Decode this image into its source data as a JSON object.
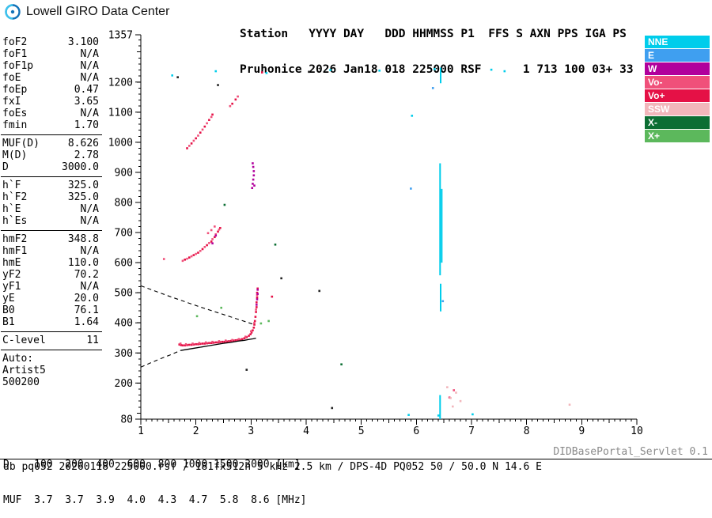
{
  "header": {
    "brand": "Lowell GIRO Data Center",
    "station_line1": "Station   YYYY DAY   DDD HHMMSS P1  FFS S AXN PPS IGA PS",
    "station_line2": "Pruhonice 2026 Jan18 018 225000 RSF      1 713 100 03+ 33"
  },
  "parameters": {
    "groups": [
      {
        "rows": [
          {
            "label": "foF2",
            "value": "3.100"
          },
          {
            "label": "foF1",
            "value": "N/A"
          },
          {
            "label": "foF1p",
            "value": "N/A"
          },
          {
            "label": "foE",
            "value": "N/A"
          },
          {
            "label": "foEp",
            "value": "0.47"
          },
          {
            "label": "fxI",
            "value": "3.65"
          },
          {
            "label": "foEs",
            "value": "N/A"
          },
          {
            "label": "fmin",
            "value": "1.70"
          }
        ]
      },
      {
        "rows": [
          {
            "label": "MUF(D)",
            "value": "8.626"
          },
          {
            "label": "M(D)",
            "value": "2.78"
          },
          {
            "label": "D",
            "value": "3000.0"
          }
        ]
      },
      {
        "rows": [
          {
            "label": "h`F",
            "value": "325.0"
          },
          {
            "label": "h`F2",
            "value": "325.0"
          },
          {
            "label": "h`E",
            "value": "N/A"
          },
          {
            "label": "h`Es",
            "value": "N/A"
          }
        ]
      },
      {
        "rows": [
          {
            "label": "hmF2",
            "value": "348.8"
          },
          {
            "label": "hmF1",
            "value": "N/A"
          },
          {
            "label": "hmE",
            "value": "110.0"
          },
          {
            "label": "yF2",
            "value": "70.2"
          },
          {
            "label": "yF1",
            "value": "N/A"
          },
          {
            "label": "yE",
            "value": "20.0"
          },
          {
            "label": "B0",
            "value": "76.1"
          },
          {
            "label": "B1",
            "value": "1.64"
          }
        ]
      },
      {
        "rows": [
          {
            "label": "C-level",
            "value": "11"
          }
        ]
      }
    ],
    "auto_block": [
      "Auto:",
      "Artist5",
      "500200"
    ]
  },
  "legend": {
    "items": [
      {
        "label": "NNE",
        "color": "#00cdeb"
      },
      {
        "label": "E",
        "color": "#3f9ff0"
      },
      {
        "label": "W",
        "color": "#b1009c"
      },
      {
        "label": "Vo-",
        "color": "#f0507a"
      },
      {
        "label": "Vo+",
        "color": "#e51146"
      },
      {
        "label": "SSW",
        "color": "#f2b6bb"
      },
      {
        "label": "X-",
        "color": "#0b6e33"
      },
      {
        "label": "X+",
        "color": "#5cb85c"
      }
    ]
  },
  "footer": {
    "distance_line": "D    100  200  400  600  800 1000 1500 3000 [km]",
    "muf_line": "MUF  3.7  3.7  3.9  4.0  4.3  4.7  5.8  8.6 [MHz]",
    "servlet": "DIDBasePortal_Servlet 0.1",
    "db_line": "db pq052 20260118 225000.rsf / 181fx512h 5 kHz 2.5 km / DPS-4D PQ052 50 / 50.0 N 14.6 E"
  },
  "chart_data": {
    "type": "scatter",
    "title": "",
    "units": {
      "x": "MHz",
      "y": "km"
    },
    "xlim": [
      1,
      10
    ],
    "ylim": [
      80,
      1357
    ],
    "xtick_labels": [
      1,
      2,
      3,
      4,
      5,
      6,
      7,
      8,
      9,
      10
    ],
    "ytick_labels": [
      80,
      200,
      300,
      400,
      500,
      600,
      700,
      800,
      900,
      1000,
      1100,
      1200,
      1357
    ],
    "series": [
      {
        "name": "Vo+",
        "color": "#e51146",
        "points": [
          [
            1.7,
            328
          ],
          [
            1.73,
            326
          ],
          [
            1.76,
            325
          ],
          [
            1.8,
            325
          ],
          [
            1.84,
            326
          ],
          [
            1.88,
            327
          ],
          [
            1.92,
            327
          ],
          [
            1.96,
            328
          ],
          [
            2.0,
            329
          ],
          [
            2.04,
            329
          ],
          [
            2.08,
            330
          ],
          [
            2.12,
            331
          ],
          [
            2.16,
            331
          ],
          [
            2.2,
            332
          ],
          [
            2.24,
            333
          ],
          [
            2.28,
            333
          ],
          [
            2.32,
            334
          ],
          [
            2.36,
            335
          ],
          [
            2.4,
            335
          ],
          [
            2.44,
            336
          ],
          [
            2.48,
            337
          ],
          [
            2.52,
            337
          ],
          [
            2.56,
            338
          ],
          [
            2.6,
            339
          ],
          [
            2.64,
            340
          ],
          [
            2.68,
            341
          ],
          [
            2.72,
            342
          ],
          [
            2.76,
            343
          ],
          [
            2.8,
            344
          ],
          [
            2.84,
            346
          ],
          [
            2.88,
            349
          ],
          [
            2.92,
            352
          ],
          [
            2.96,
            357
          ],
          [
            2.99,
            362
          ],
          [
            3.01,
            368
          ],
          [
            3.03,
            375
          ],
          [
            3.05,
            384
          ],
          [
            3.06,
            394
          ],
          [
            3.07,
            406
          ],
          [
            3.08,
            420
          ],
          [
            3.09,
            436
          ],
          [
            3.1,
            452
          ],
          [
            3.1,
            468
          ],
          [
            3.11,
            484
          ],
          [
            3.11,
            500
          ],
          [
            3.12,
            514
          ],
          [
            1.8,
            610
          ],
          [
            1.88,
            617
          ],
          [
            1.96,
            625
          ],
          [
            2.04,
            633
          ],
          [
            2.12,
            645
          ],
          [
            2.2,
            658
          ],
          [
            2.28,
            670
          ],
          [
            2.34,
            685
          ],
          [
            2.4,
            703
          ],
          [
            2.44,
            715
          ],
          [
            1.84,
            980
          ],
          [
            1.92,
            996
          ],
          [
            2.0,
            1013
          ],
          [
            2.08,
            1032
          ],
          [
            2.16,
            1052
          ],
          [
            2.24,
            1074
          ],
          [
            2.3,
            1092
          ],
          [
            3.38,
            487
          ],
          [
            2.66,
            1128
          ],
          [
            2.72,
            1142
          ],
          [
            3.2,
            1232
          ]
        ]
      },
      {
        "name": "Vo-",
        "color": "#f0507a",
        "points": [
          [
            1.72,
            331
          ],
          [
            1.82,
            329
          ],
          [
            1.94,
            331
          ],
          [
            2.06,
            333
          ],
          [
            2.18,
            335
          ],
          [
            2.3,
            337
          ],
          [
            2.42,
            339
          ],
          [
            2.54,
            341
          ],
          [
            2.66,
            343
          ],
          [
            2.78,
            346
          ],
          [
            2.9,
            354
          ],
          [
            3.0,
            372
          ],
          [
            3.06,
            400
          ],
          [
            3.09,
            444
          ],
          [
            3.11,
            492
          ],
          [
            1.76,
            606
          ],
          [
            1.84,
            613
          ],
          [
            1.92,
            621
          ],
          [
            2.0,
            629
          ],
          [
            2.08,
            639
          ],
          [
            2.16,
            652
          ],
          [
            2.24,
            665
          ],
          [
            2.3,
            678
          ],
          [
            2.36,
            694
          ],
          [
            2.42,
            710
          ],
          [
            2.34,
            720
          ],
          [
            2.28,
            708
          ],
          [
            2.22,
            698
          ],
          [
            1.42,
            612
          ],
          [
            1.88,
            988
          ],
          [
            1.96,
            1005
          ],
          [
            2.04,
            1022
          ],
          [
            2.12,
            1042
          ],
          [
            2.2,
            1063
          ],
          [
            2.28,
            1084
          ],
          [
            2.62,
            1120
          ],
          [
            2.76,
            1152
          ],
          [
            6.68,
            176
          ],
          [
            6.6,
            152
          ]
        ]
      },
      {
        "name": "W",
        "color": "#b1009c",
        "points": [
          [
            3.02,
            848
          ],
          [
            3.03,
            862
          ],
          [
            3.04,
            876
          ],
          [
            3.05,
            890
          ],
          [
            3.05,
            904
          ],
          [
            3.04,
            918
          ],
          [
            3.03,
            930
          ],
          [
            3.06,
            856
          ],
          [
            3.1,
            460
          ],
          [
            3.11,
            478
          ],
          [
            3.12,
            496
          ],
          [
            3.12,
            510
          ],
          [
            2.3,
            664
          ],
          [
            2.36,
            690
          ]
        ]
      },
      {
        "name": "NNE",
        "color": "#00cdeb",
        "points": [
          [
            1.57,
            1222
          ],
          [
            2.36,
            1236
          ],
          [
            3.28,
            1230
          ],
          [
            4.44,
            1240
          ],
          [
            5.33,
            1238
          ],
          [
            6.33,
            1243
          ],
          [
            7.36,
            1241
          ],
          [
            7.6,
            1236
          ],
          [
            5.92,
            1088
          ],
          [
            5.86,
            94
          ],
          [
            7.02,
            96
          ],
          [
            6.4,
            92
          ]
        ]
      },
      {
        "name": "E",
        "color": "#3f9ff0",
        "points": [
          [
            5.9,
            846
          ],
          [
            6.48,
            472
          ],
          [
            6.3,
            1180
          ]
        ]
      },
      {
        "name": "SSW",
        "color": "#f2b6bb",
        "points": [
          [
            6.62,
            150
          ],
          [
            6.72,
            168
          ],
          [
            6.56,
            186
          ],
          [
            6.8,
            140
          ],
          [
            8.78,
            128
          ],
          [
            6.66,
            122
          ]
        ]
      },
      {
        "name": "X-",
        "color": "#0b6e33",
        "points": [
          [
            2.52,
            792
          ],
          [
            3.44,
            660
          ],
          [
            4.64,
            262
          ]
        ]
      },
      {
        "name": "X+",
        "color": "#5cb85c",
        "points": [
          [
            2.02,
            422
          ],
          [
            3.32,
            406
          ],
          [
            3.18,
            398
          ],
          [
            2.46,
            450
          ]
        ]
      },
      {
        "name": "unclassified",
        "color": "#222222",
        "points": [
          [
            1.67,
            1216
          ],
          [
            4.05,
            1234
          ],
          [
            2.92,
            244
          ],
          [
            3.55,
            548
          ],
          [
            4.47,
            117
          ],
          [
            2.4,
            1190
          ],
          [
            4.24,
            506
          ]
        ]
      }
    ],
    "vlines": [
      {
        "x": 6.43,
        "y1": 558,
        "y2": 930,
        "color": "#00cdeb"
      },
      {
        "x": 6.46,
        "y1": 600,
        "y2": 845,
        "color": "#00cdeb"
      },
      {
        "x": 6.44,
        "y1": 438,
        "y2": 530,
        "color": "#00cdeb"
      },
      {
        "x": 6.43,
        "y1": 80,
        "y2": 160,
        "color": "#00cdeb"
      },
      {
        "x": 6.44,
        "y1": 1196,
        "y2": 1248,
        "color": "#00cdeb"
      }
    ],
    "profile_solid": [
      [
        1.72,
        308
      ],
      [
        1.85,
        312
      ],
      [
        1.98,
        316
      ],
      [
        2.11,
        320
      ],
      [
        2.24,
        324
      ],
      [
        2.37,
        328
      ],
      [
        2.5,
        332
      ],
      [
        2.63,
        335
      ],
      [
        2.76,
        339
      ],
      [
        2.88,
        342
      ],
      [
        2.97,
        345
      ],
      [
        3.04,
        347
      ],
      [
        3.09,
        349
      ]
    ],
    "profile_dashed": [
      [
        [
          1.0,
          253
        ],
        [
          1.18,
          267
        ],
        [
          1.36,
          281
        ],
        [
          1.54,
          294
        ],
        [
          1.72,
          308
        ]
      ],
      [
        [
          1.0,
          523
        ],
        [
          1.52,
          488
        ],
        [
          2.04,
          455
        ],
        [
          2.56,
          424
        ],
        [
          3.08,
          393
        ]
      ]
    ]
  }
}
